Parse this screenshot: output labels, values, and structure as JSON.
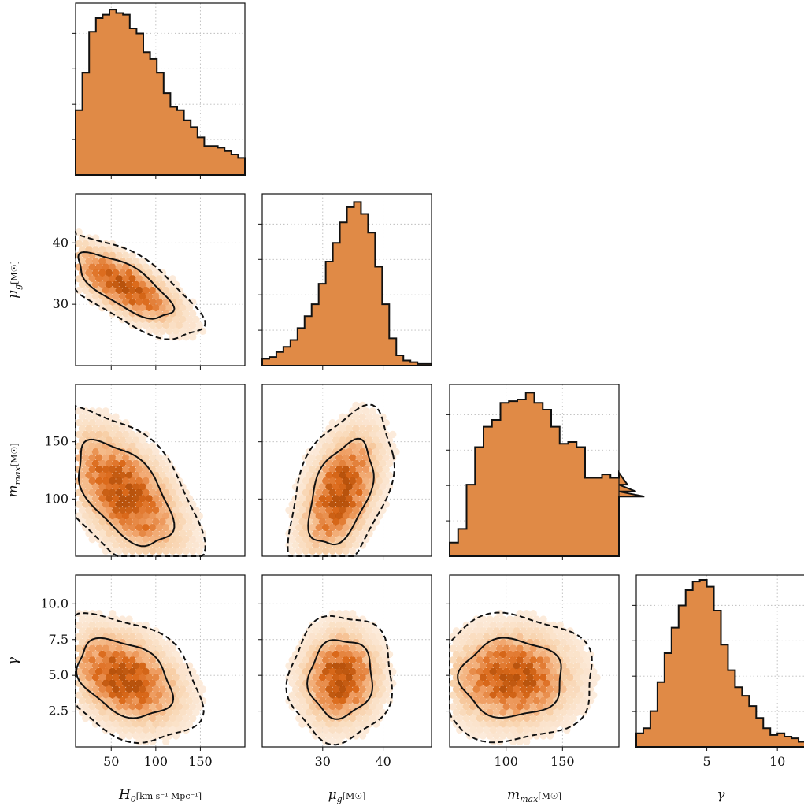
{
  "chart_data": {
    "type": "corner",
    "histogram_color": "#e08a46",
    "density_colormap": [
      "#fdf0e4",
      "#f8cfa6",
      "#ee9a5c",
      "#d9620f",
      "#b44a00"
    ],
    "contour_levels": [
      {
        "level": "68%",
        "style": "solid"
      },
      {
        "level": "95%",
        "style": "dashed"
      }
    ],
    "grid": true,
    "parameters": [
      {
        "key": "H0",
        "label": "H",
        "label_sub": "0",
        "label_unit": "[km s⁻¹ Mpc⁻¹]",
        "range": [
          10,
          200
        ],
        "ticks": [
          50,
          100,
          150
        ],
        "tick_labels": [
          "50",
          "100",
          "150"
        ],
        "hist": {
          "bin_edges_start": 10,
          "bin_width": 7.6,
          "counts": [
            0.38,
            0.6,
            0.84,
            0.92,
            0.94,
            0.97,
            0.95,
            0.94,
            0.86,
            0.83,
            0.72,
            0.68,
            0.6,
            0.48,
            0.4,
            0.38,
            0.32,
            0.28,
            0.22,
            0.17,
            0.17,
            0.16,
            0.14,
            0.12,
            0.1
          ]
        }
      },
      {
        "key": "mu_g",
        "label": "μ",
        "label_sub": "g",
        "label_unit": "[M☉]",
        "range": [
          20,
          48
        ],
        "ticks": [
          30,
          40
        ],
        "tick_labels": [
          "30",
          "40"
        ],
        "tick_labels_y": [
          "30",
          "40"
        ],
        "hist": {
          "bin_edges_start": 20,
          "bin_width": 1.167,
          "counts": [
            0.04,
            0.05,
            0.08,
            0.11,
            0.15,
            0.22,
            0.29,
            0.36,
            0.48,
            0.61,
            0.72,
            0.84,
            0.93,
            0.96,
            0.89,
            0.78,
            0.58,
            0.36,
            0.16,
            0.06,
            0.03,
            0.02,
            0.01,
            0.01
          ]
        }
      },
      {
        "key": "m_max",
        "label": "m",
        "label_sub": "max",
        "label_unit": "[M☉]",
        "range": [
          50,
          200
        ],
        "ticks": [
          100,
          150
        ],
        "tick_labels": [
          "100",
          "150"
        ],
        "y_ticks": [
          100,
          150
        ],
        "y_tick_labels": [
          "100",
          "150"
        ],
        "hist": {
          "bin_edges_start": 50,
          "bin_width": 7.5,
          "counts": [
            0.08,
            0.16,
            0.42,
            0.64,
            0.76,
            0.8,
            0.9,
            0.91,
            0.92,
            0.96,
            0.9,
            0.86,
            0.76,
            0.66,
            0.67,
            0.64,
            0.46,
            0.46,
            0.48,
            0.46,
            0.49,
            0.42,
            0.38,
            0.35
          ]
        }
      },
      {
        "key": "gamma",
        "label": "γ",
        "label_sub": "",
        "label_unit": "",
        "range": [
          0,
          12
        ],
        "ticks": [
          5,
          10
        ],
        "tick_labels": [
          "5",
          "10"
        ],
        "y_ticks": [
          2.5,
          5.0,
          7.5,
          10.0
        ],
        "y_tick_labels": [
          "2.5",
          "5.0",
          "7.5",
          "10.0"
        ],
        "hist": {
          "bin_edges_start": 0,
          "bin_width": 0.5,
          "counts": [
            0.08,
            0.11,
            0.21,
            0.38,
            0.55,
            0.7,
            0.83,
            0.92,
            0.97,
            0.98,
            0.94,
            0.8,
            0.6,
            0.45,
            0.35,
            0.3,
            0.24,
            0.17,
            0.11,
            0.07,
            0.08,
            0.06,
            0.05,
            0.03
          ]
        }
      }
    ]
  }
}
